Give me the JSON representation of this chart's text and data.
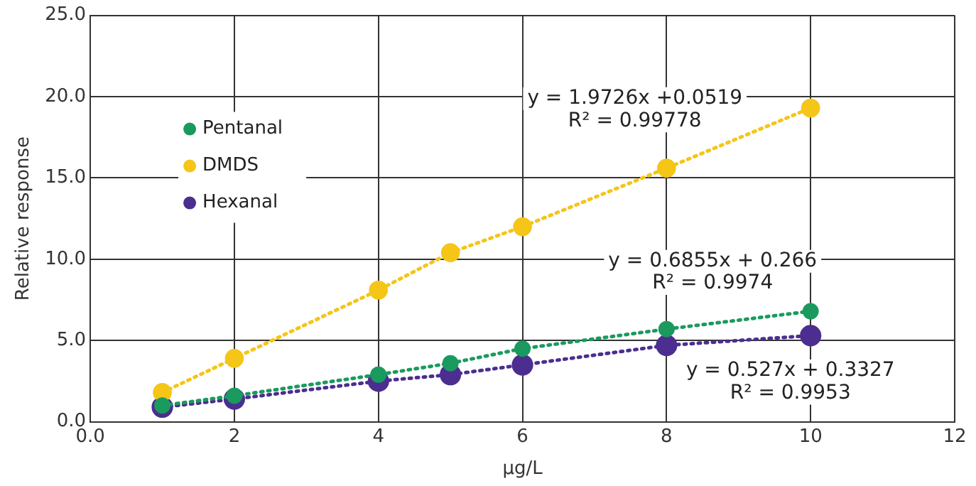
{
  "chart_data": {
    "type": "line",
    "xlabel": "µg/L",
    "ylabel": "Relative response",
    "x": [
      1,
      2,
      4,
      5,
      6,
      8,
      10
    ],
    "series": [
      {
        "name": "Pentanal",
        "color": "#1a9a5e",
        "values": [
          1.0,
          1.6,
          2.9,
          3.6,
          4.5,
          5.7,
          6.8
        ]
      },
      {
        "name": "DMDS",
        "color": "#f5c518",
        "values": [
          1.8,
          3.9,
          8.1,
          10.4,
          12.0,
          15.6,
          19.3
        ]
      },
      {
        "name": "Hexanal",
        "color": "#4b2e8f",
        "values": [
          0.9,
          1.4,
          2.5,
          2.9,
          3.5,
          4.7,
          5.3
        ]
      }
    ],
    "xlim": [
      0,
      12
    ],
    "xticks": [
      {
        "value": 0,
        "label": "0.0"
      },
      2,
      4,
      6,
      8,
      10,
      12
    ],
    "ylim": [
      0,
      25
    ],
    "yticks": [
      {
        "value": 0,
        "label": "0.0"
      },
      {
        "value": 5,
        "label": "5.0"
      },
      {
        "value": 10,
        "label": "10.0"
      },
      {
        "value": 15,
        "label": "15.0"
      },
      {
        "value": 20,
        "label": "20.0"
      },
      {
        "value": 25,
        "label": "25.0"
      }
    ],
    "grid": true,
    "legend": "left",
    "marker": "circle",
    "line_style": "dotted",
    "annotations": [
      "y = 1.9726x +0.0519",
      "R² = 0.99778",
      "y = 0.6855x + 0.266",
      "R² = 0.9974",
      "y = 0.527x + 0.3327",
      "R² = 0.9953"
    ]
  }
}
